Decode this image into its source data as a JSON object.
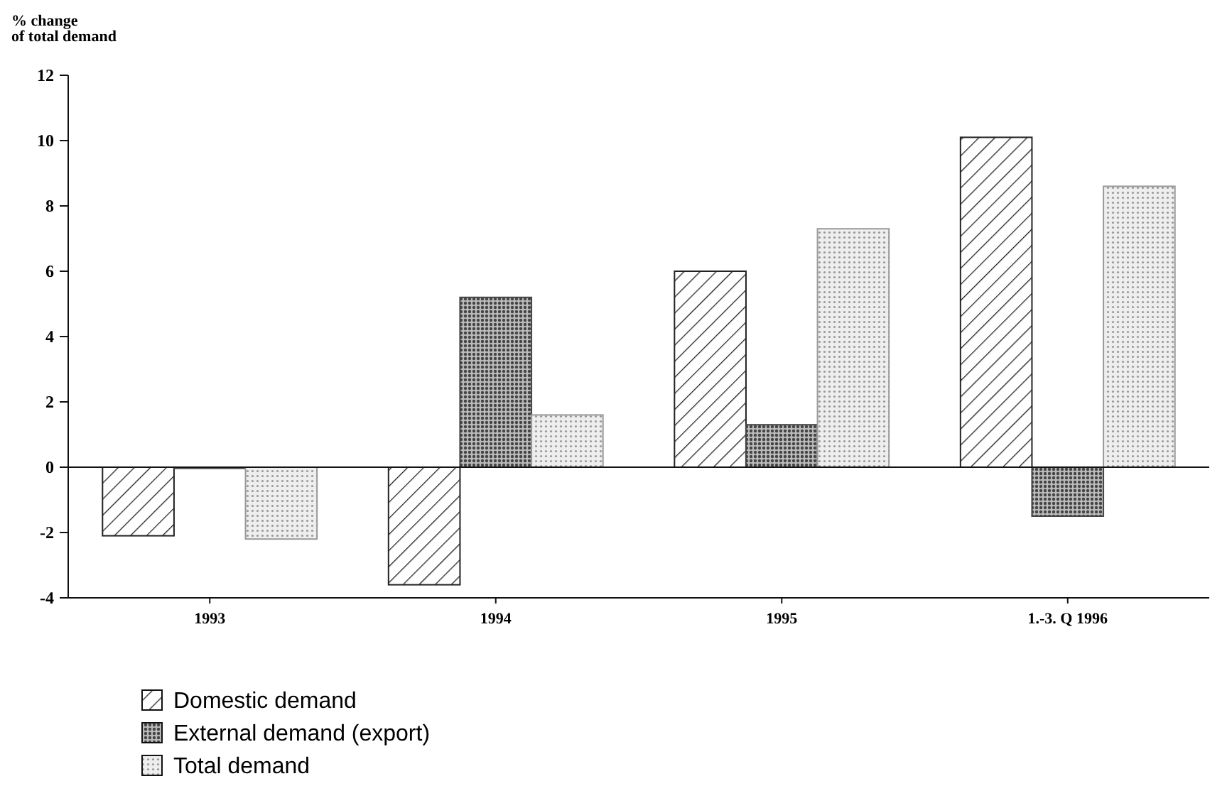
{
  "chart_data": {
    "type": "bar",
    "ylabel": "% change\nof total demand",
    "categories": [
      "1993",
      "1994",
      "1995",
      "1.-3. Q 1996"
    ],
    "series": [
      {
        "name": "Domestic demand",
        "color": "#222222",
        "values": [
          -2.1,
          -3.6,
          6.0,
          10.1
        ]
      },
      {
        "name": "External demand (export)",
        "color": "#444444",
        "values": [
          0,
          5.2,
          1.3,
          -1.5
        ]
      },
      {
        "name": "Total demand",
        "color": "#999999",
        "values": [
          -2.2,
          1.6,
          7.3,
          8.6
        ]
      }
    ],
    "ylim": [
      -4,
      12
    ],
    "yticks": [
      -4,
      -2,
      0,
      2,
      4,
      6,
      8,
      10,
      12
    ],
    "legend": "bottom left"
  }
}
